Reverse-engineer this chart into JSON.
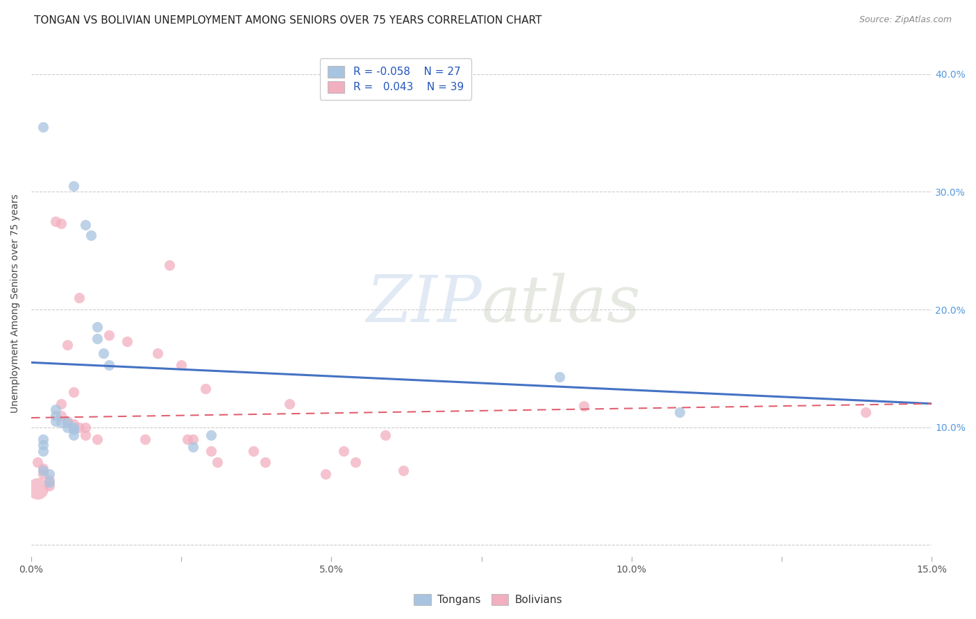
{
  "title": "TONGAN VS BOLIVIAN UNEMPLOYMENT AMONG SENIORS OVER 75 YEARS CORRELATION CHART",
  "source": "Source: ZipAtlas.com",
  "ylabel": "Unemployment Among Seniors over 75 years",
  "xlim": [
    0.0,
    0.15
  ],
  "ylim": [
    -0.01,
    0.42
  ],
  "xticks": [
    0.0,
    0.025,
    0.05,
    0.075,
    0.1,
    0.125,
    0.15
  ],
  "xticklabels": [
    "0.0%",
    "",
    "5.0%",
    "",
    "10.0%",
    "",
    "15.0%"
  ],
  "yticks_right": [
    0.1,
    0.2,
    0.3,
    0.4
  ],
  "yticklabels_right": [
    "10.0%",
    "20.0%",
    "30.0%",
    "40.0%"
  ],
  "tongan_color": "#a8c4e0",
  "bolivian_color": "#f2afc0",
  "tongan_line_color": "#4472c4",
  "bolivian_line_color": "#e06070",
  "legend_R_tongan": "-0.058",
  "legend_N_tongan": "27",
  "legend_R_bolivian": "0.043",
  "legend_N_bolivian": "39",
  "watermark_zip": "ZIP",
  "watermark_atlas": "atlas",
  "tongan_x": [
    0.002,
    0.007,
    0.009,
    0.01,
    0.011,
    0.011,
    0.012,
    0.013,
    0.004,
    0.004,
    0.004,
    0.005,
    0.006,
    0.006,
    0.007,
    0.007,
    0.002,
    0.002,
    0.002,
    0.002,
    0.003,
    0.003,
    0.007,
    0.027,
    0.03,
    0.088,
    0.108
  ],
  "tongan_y": [
    0.355,
    0.305,
    0.272,
    0.263,
    0.185,
    0.175,
    0.163,
    0.153,
    0.115,
    0.11,
    0.105,
    0.104,
    0.104,
    0.1,
    0.1,
    0.098,
    0.09,
    0.085,
    0.08,
    0.063,
    0.06,
    0.053,
    0.093,
    0.083,
    0.093,
    0.143,
    0.113
  ],
  "bolivian_x": [
    0.001,
    0.002,
    0.002,
    0.003,
    0.003,
    0.004,
    0.005,
    0.005,
    0.005,
    0.006,
    0.006,
    0.007,
    0.007,
    0.008,
    0.008,
    0.009,
    0.009,
    0.011,
    0.013,
    0.016,
    0.019,
    0.021,
    0.023,
    0.025,
    0.026,
    0.027,
    0.029,
    0.03,
    0.031,
    0.037,
    0.039,
    0.043,
    0.049,
    0.052,
    0.054,
    0.059,
    0.062,
    0.092,
    0.139
  ],
  "bolivian_y": [
    0.07,
    0.065,
    0.06,
    0.055,
    0.05,
    0.275,
    0.273,
    0.12,
    0.11,
    0.17,
    0.105,
    0.13,
    0.103,
    0.21,
    0.1,
    0.1,
    0.093,
    0.09,
    0.178,
    0.173,
    0.09,
    0.163,
    0.238,
    0.153,
    0.09,
    0.09,
    0.133,
    0.08,
    0.07,
    0.08,
    0.07,
    0.12,
    0.06,
    0.08,
    0.07,
    0.093,
    0.063,
    0.118,
    0.113
  ],
  "bolivian_large_x": [
    0.001
  ],
  "bolivian_large_y": [
    0.048
  ],
  "bolivian_large_s": 500,
  "grid_color": "#cccccc",
  "grid_linestyle": "--",
  "title_fontsize": 11,
  "axis_fontsize": 10,
  "right_tick_color": "#5599dd"
}
